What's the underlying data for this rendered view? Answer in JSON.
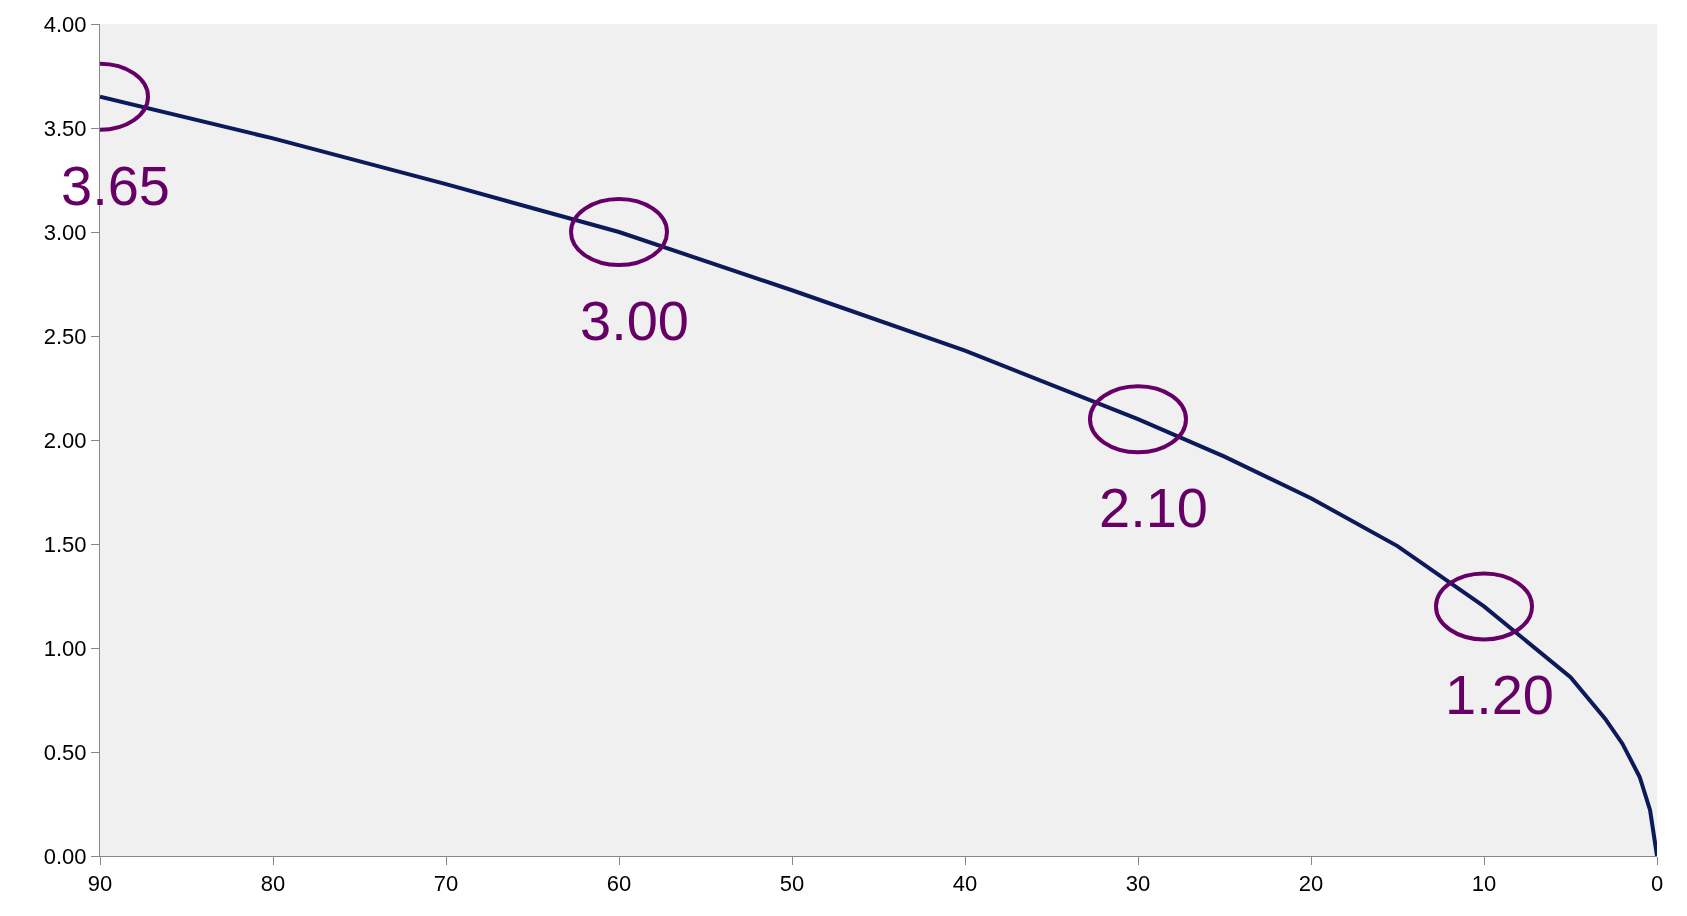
{
  "chart_data": {
    "type": "line",
    "x": [
      90,
      80,
      70,
      60,
      50,
      40,
      30,
      25,
      20,
      15,
      10,
      5,
      3,
      2,
      1,
      0.4,
      0
    ],
    "series": [
      {
        "color": "#0c1a5a",
        "values": [
          3.65,
          3.45,
          3.23,
          3.0,
          2.72,
          2.43,
          2.1,
          1.92,
          1.72,
          1.49,
          1.2,
          0.86,
          0.66,
          0.54,
          0.38,
          0.22,
          0
        ]
      }
    ],
    "xlim": [
      90,
      0
    ],
    "xticks": [
      90,
      80,
      70,
      60,
      50,
      40,
      30,
      20,
      10,
      0
    ],
    "ylim": [
      0,
      4
    ],
    "yticks": [
      {
        "value": 0,
        "label": "0.00"
      },
      {
        "value": 0.5,
        "label": "0.50"
      },
      {
        "value": 1,
        "label": "1.00"
      },
      {
        "value": 1.5,
        "label": "1.50"
      },
      {
        "value": 2,
        "label": "2.00"
      },
      {
        "value": 2.5,
        "label": "2.50"
      },
      {
        "value": 3,
        "label": "3.00"
      },
      {
        "value": 3.5,
        "label": "3.50"
      },
      {
        "value": 4,
        "label": "4.00"
      }
    ],
    "grid": false,
    "marker": "none",
    "line_style": "solid",
    "annotations": [
      {
        "text": "3.65",
        "x": 90,
        "y": 3.65
      },
      {
        "text": "3.00",
        "x": 60,
        "y": 3.0
      },
      {
        "text": "2.10",
        "x": 30,
        "y": 2.1
      },
      {
        "text": "1.20",
        "x": 10,
        "y": 1.2
      }
    ]
  }
}
